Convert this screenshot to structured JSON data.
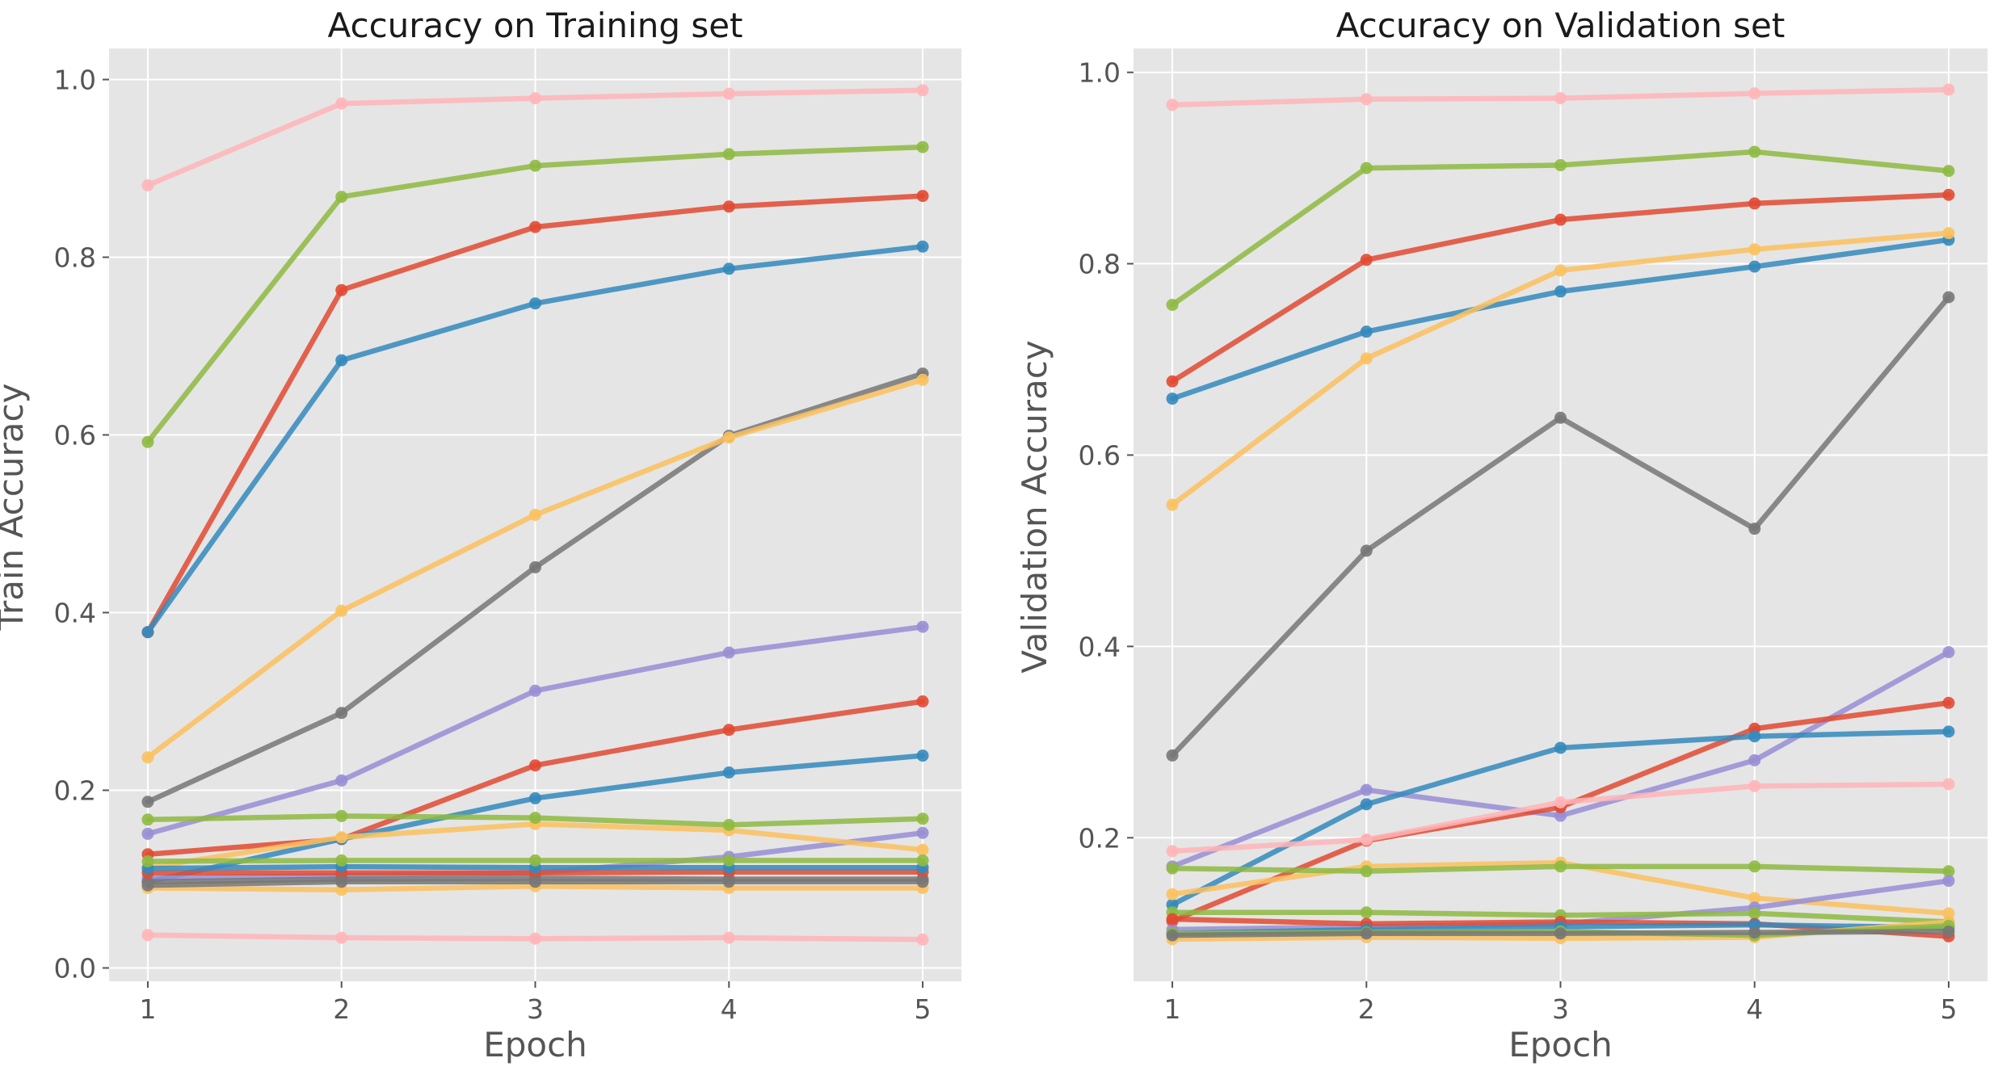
{
  "chart_data": [
    {
      "type": "line",
      "title": "Accuracy on Training set",
      "xlabel": "Epoch",
      "ylabel": "Train Accuracy",
      "x": [
        1,
        2,
        3,
        4,
        5
      ],
      "xlim": [
        0.8,
        5.2
      ],
      "ylim": [
        -0.015,
        1.035
      ],
      "yticks": [
        0.0,
        0.2,
        0.4,
        0.6,
        0.8,
        1.0
      ],
      "ytick_labels": [
        "0.0",
        "0.2",
        "0.4",
        "0.6",
        "0.8",
        "1.0"
      ],
      "xtick_labels": [
        "1",
        "2",
        "3",
        "4",
        "5"
      ],
      "grid": true,
      "legend": "none",
      "series": [
        {
          "color": "#E24A33",
          "values": [
            0.378,
            0.763,
            0.834,
            0.857,
            0.869
          ]
        },
        {
          "color": "#348ABD",
          "values": [
            0.378,
            0.684,
            0.748,
            0.787,
            0.812
          ]
        },
        {
          "color": "#988ED5",
          "values": [
            0.151,
            0.211,
            0.312,
            0.355,
            0.384
          ]
        },
        {
          "color": "#777777",
          "values": [
            0.187,
            0.287,
            0.451,
            0.599,
            0.669
          ]
        },
        {
          "color": "#FBC15E",
          "values": [
            0.237,
            0.402,
            0.51,
            0.597,
            0.662
          ]
        },
        {
          "color": "#8EBA42",
          "values": [
            0.592,
            0.868,
            0.903,
            0.916,
            0.924
          ]
        },
        {
          "color": "#FFB5B8",
          "values": [
            0.881,
            0.973,
            0.979,
            0.984,
            0.988
          ]
        },
        {
          "color": "#E24A33",
          "values": [
            0.128,
            0.145,
            0.228,
            0.268,
            0.3
          ]
        },
        {
          "color": "#348ABD",
          "values": [
            0.097,
            0.145,
            0.191,
            0.22,
            0.239
          ]
        },
        {
          "color": "#988ED5",
          "values": [
            0.101,
            0.104,
            0.107,
            0.125,
            0.152
          ]
        },
        {
          "color": "#777777",
          "values": [
            0.097,
            0.1,
            0.101,
            0.1,
            0.1
          ]
        },
        {
          "color": "#FBC15E",
          "values": [
            0.113,
            0.147,
            0.162,
            0.155,
            0.133
          ]
        },
        {
          "color": "#8EBA42",
          "values": [
            0.167,
            0.171,
            0.169,
            0.161,
            0.168
          ]
        },
        {
          "color": "#FFB5B8",
          "values": [
            0.037,
            0.034,
            0.033,
            0.034,
            0.032
          ]
        },
        {
          "color": "#E24A33",
          "values": [
            0.107,
            0.107,
            0.107,
            0.108,
            0.108
          ]
        },
        {
          "color": "#348ABD",
          "values": [
            0.112,
            0.114,
            0.113,
            0.113,
            0.113
          ]
        },
        {
          "color": "#8EBA42",
          "values": [
            0.12,
            0.121,
            0.121,
            0.121,
            0.121
          ]
        },
        {
          "color": "#FBC15E",
          "values": [
            0.09,
            0.088,
            0.092,
            0.09,
            0.09
          ]
        },
        {
          "color": "#777777",
          "values": [
            0.093,
            0.097,
            0.097,
            0.097,
            0.097
          ]
        }
      ]
    },
    {
      "type": "line",
      "title": "Accuracy on Validation set",
      "xlabel": "Epoch",
      "ylabel": "Validation Accuracy",
      "x": [
        1,
        2,
        3,
        4,
        5
      ],
      "xlim": [
        0.8,
        5.2
      ],
      "ylim": [
        0.05,
        1.025
      ],
      "yticks": [
        0.2,
        0.4,
        0.6,
        0.8,
        1.0
      ],
      "ytick_labels": [
        "0.2",
        "0.4",
        "0.6",
        "0.8",
        "1.0"
      ],
      "xtick_labels": [
        "1",
        "2",
        "3",
        "4",
        "5"
      ],
      "grid": true,
      "legend": "none",
      "series": [
        {
          "color": "#E24A33",
          "values": [
            0.677,
            0.804,
            0.846,
            0.863,
            0.872
          ]
        },
        {
          "color": "#348ABD",
          "values": [
            0.659,
            0.729,
            0.771,
            0.797,
            0.825
          ]
        },
        {
          "color": "#988ED5",
          "values": [
            0.17,
            0.25,
            0.223,
            0.281,
            0.394
          ]
        },
        {
          "color": "#777777",
          "values": [
            0.286,
            0.5,
            0.639,
            0.523,
            0.765
          ]
        },
        {
          "color": "#FBC15E",
          "values": [
            0.548,
            0.701,
            0.793,
            0.815,
            0.832
          ]
        },
        {
          "color": "#8EBA42",
          "values": [
            0.757,
            0.9,
            0.903,
            0.917,
            0.897
          ]
        },
        {
          "color": "#FFB5B8",
          "values": [
            0.966,
            0.972,
            0.973,
            0.978,
            0.982
          ]
        },
        {
          "color": "#E24A33",
          "values": [
            0.113,
            0.197,
            0.232,
            0.314,
            0.341
          ]
        },
        {
          "color": "#348ABD",
          "values": [
            0.13,
            0.235,
            0.294,
            0.306,
            0.311
          ]
        },
        {
          "color": "#FFB5B8",
          "values": [
            0.186,
            0.198,
            0.237,
            0.254,
            0.256
          ]
        },
        {
          "color": "#FBC15E",
          "values": [
            0.141,
            0.17,
            0.174,
            0.137,
            0.121
          ]
        },
        {
          "color": "#8EBA42",
          "values": [
            0.168,
            0.165,
            0.17,
            0.17,
            0.165
          ]
        },
        {
          "color": "#988ED5",
          "values": [
            0.104,
            0.107,
            0.11,
            0.127,
            0.155
          ]
        },
        {
          "color": "#8EBA42",
          "values": [
            0.122,
            0.122,
            0.119,
            0.121,
            0.112
          ]
        },
        {
          "color": "#E24A33",
          "values": [
            0.115,
            0.11,
            0.112,
            0.11,
            0.097
          ]
        },
        {
          "color": "#348ABD",
          "values": [
            0.1,
            0.104,
            0.107,
            0.109,
            0.106
          ]
        },
        {
          "color": "#FBC15E",
          "values": [
            0.094,
            0.096,
            0.095,
            0.096,
            0.112
          ]
        },
        {
          "color": "#8EBA42",
          "values": [
            0.1,
            0.101,
            0.102,
            0.098,
            0.108
          ]
        },
        {
          "color": "#777777",
          "values": [
            0.098,
            0.1,
            0.1,
            0.101,
            0.102
          ]
        }
      ]
    }
  ]
}
